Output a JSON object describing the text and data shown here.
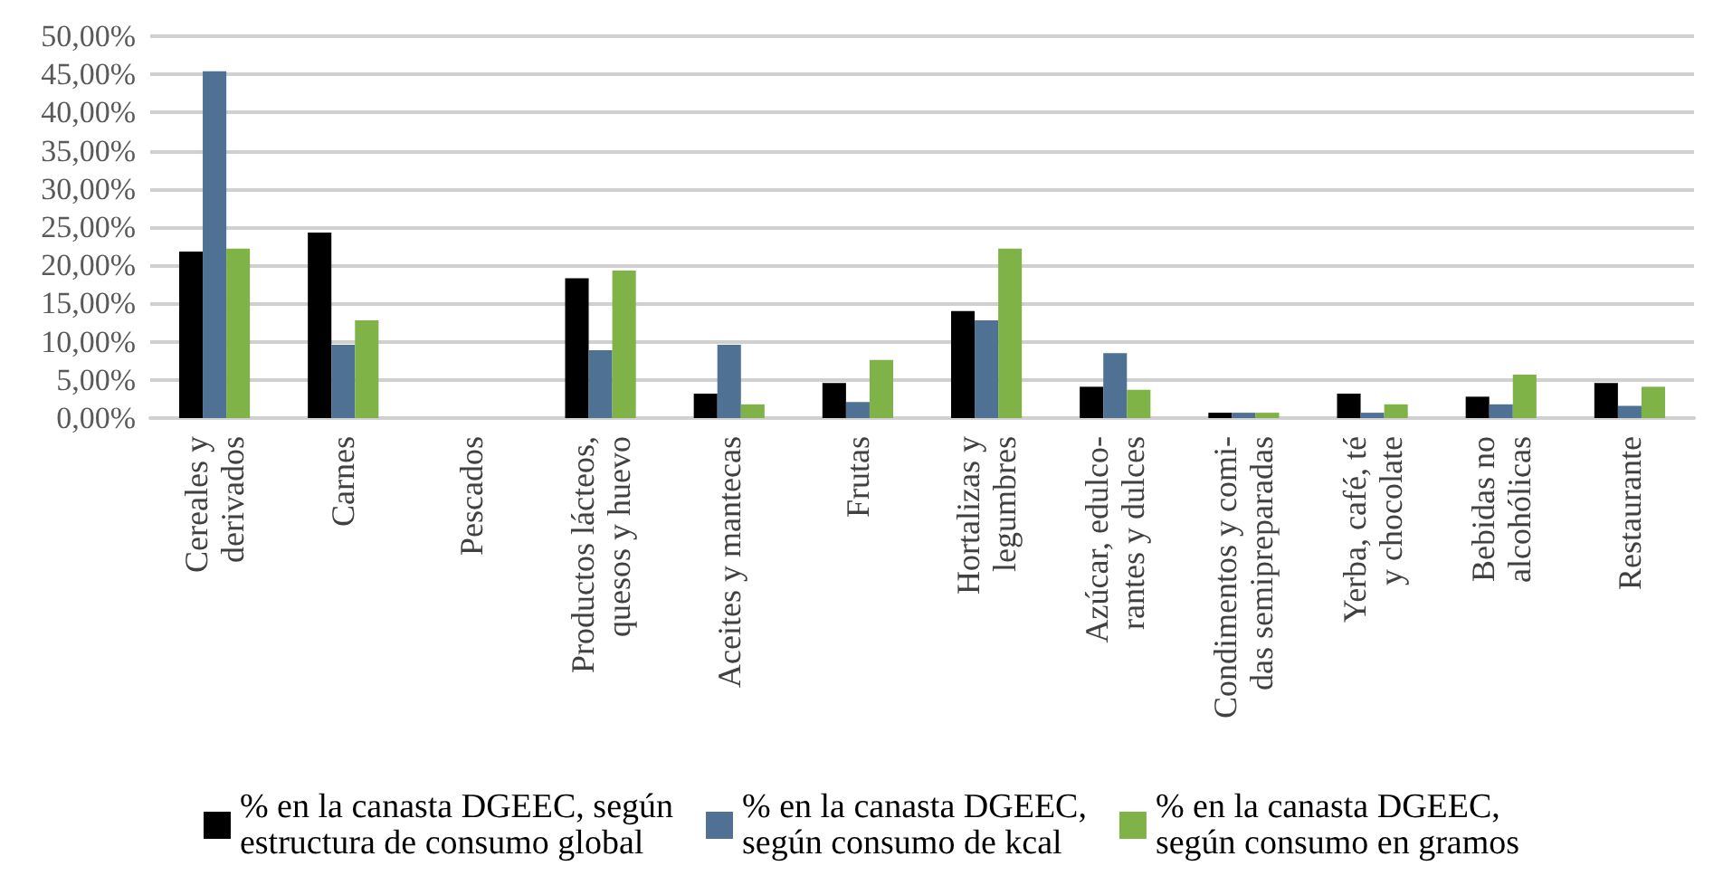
{
  "chart_data": {
    "type": "bar",
    "categories": [
      "Cereales y\nderivados",
      "Carnes",
      "Pescados",
      "Productos lácteos,\nquesos y huevo",
      "Aceites y mantecas",
      "Frutas",
      "Hortalizas y\nlegumbres",
      "Azúcar, edulco-\nrantes y dulces",
      "Condimentos y comi-\ndas semipreparadas",
      "Yerba, café, té\ny chocolate",
      "Bebidas no\nalcohólicas",
      "Restaurante"
    ],
    "series": [
      {
        "name": "% en la canasta DGEEC, según\nestructura de consumo global",
        "color": "#000000",
        "values": [
          21.8,
          24.3,
          0,
          18.3,
          3.2,
          4.6,
          14.0,
          4.1,
          0.7,
          3.2,
          2.8,
          4.6
        ]
      },
      {
        "name": "% en la canasta DGEEC,\nsegún consumo de kcal",
        "color": "#4f7194",
        "values": [
          45.4,
          9.6,
          0,
          8.9,
          9.6,
          2.1,
          12.8,
          8.5,
          0.7,
          0.7,
          1.8,
          1.6
        ]
      },
      {
        "name": "% en la canasta DGEEC,\nsegún consumo en gramos",
        "color": "#7fb347",
        "values": [
          22.2,
          12.8,
          0,
          19.3,
          1.8,
          7.6,
          22.2,
          3.7,
          0.7,
          1.8,
          5.7,
          4.1
        ]
      }
    ],
    "ylim": [
      0,
      50
    ],
    "yticks": [
      {
        "value": 0,
        "label": "0,00%"
      },
      {
        "value": 5,
        "label": "5,00%"
      },
      {
        "value": 10,
        "label": "10,00%"
      },
      {
        "value": 15,
        "label": "15,00%"
      },
      {
        "value": 20,
        "label": "20,00%"
      },
      {
        "value": 25,
        "label": "25,00%"
      },
      {
        "value": 30,
        "label": "30,00%"
      },
      {
        "value": 35,
        "label": "35,00%"
      },
      {
        "value": 40,
        "label": "40,00%"
      },
      {
        "value": 45,
        "label": "45,00%"
      },
      {
        "value": 50,
        "label": "50,00%"
      }
    ],
    "grid": "y",
    "legend": "bottom"
  }
}
